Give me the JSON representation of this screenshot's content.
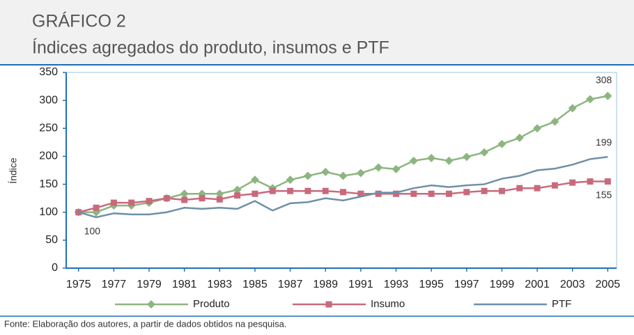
{
  "chart_data": {
    "type": "line",
    "title": "GRÁFICO 2",
    "subtitle": "Índices agregados do produto, insumos e PTF",
    "y_label": "Índice",
    "source": "Fonte: Elaboração dos autores, a partir de dados obtidos na pesquisa.",
    "x": [
      1975,
      1976,
      1977,
      1978,
      1979,
      1980,
      1981,
      1982,
      1983,
      1984,
      1985,
      1986,
      1987,
      1988,
      1989,
      1990,
      1991,
      1992,
      1993,
      1994,
      1995,
      1996,
      1997,
      1998,
      1999,
      2000,
      2001,
      2002,
      2003,
      2004,
      2005
    ],
    "xlim": [
      1974.3,
      2005.5
    ],
    "xticks": [
      1975,
      1977,
      1979,
      1981,
      1983,
      1985,
      1987,
      1989,
      1991,
      1993,
      1995,
      1997,
      1999,
      2001,
      2003,
      2005
    ],
    "ylim": [
      0,
      350
    ],
    "yticks": [
      0,
      50,
      100,
      150,
      200,
      250,
      300,
      350
    ],
    "grid": false,
    "series": [
      {
        "name": "Produto",
        "color": "#8db580",
        "marker": "diamond",
        "values": [
          100,
          100,
          112,
          112,
          117,
          125,
          133,
          133,
          133,
          140,
          158,
          143,
          158,
          165,
          172,
          165,
          170,
          180,
          177,
          192,
          197,
          192,
          199,
          207,
          222,
          233,
          250,
          262,
          286,
          302,
          308
        ]
      },
      {
        "name": "Insumo",
        "color": "#c86a7c",
        "marker": "square",
        "values": [
          100,
          108,
          117,
          117,
          120,
          125,
          122,
          125,
          123,
          130,
          133,
          138,
          138,
          138,
          138,
          136,
          133,
          133,
          133,
          133,
          133,
          133,
          136,
          138,
          138,
          143,
          143,
          148,
          153,
          155,
          155
        ]
      },
      {
        "name": "PTF",
        "color": "#6f8fa8",
        "marker": "none",
        "values": [
          100,
          91,
          98,
          96,
          96,
          100,
          108,
          106,
          108,
          106,
          120,
          103,
          116,
          118,
          125,
          121,
          128,
          135,
          135,
          143,
          148,
          145,
          148,
          150,
          160,
          165,
          175,
          178,
          185,
          195,
          199
        ]
      }
    ]
  }
}
